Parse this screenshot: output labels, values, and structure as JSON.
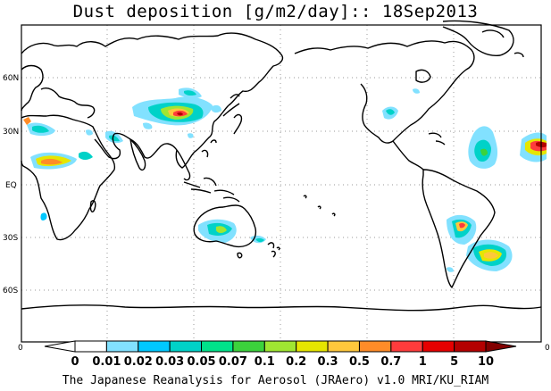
{
  "title": "Dust deposition [g/m2/day]:: 18Sep2013",
  "lat_labels": [
    "60N",
    "30N",
    "EQ",
    "30S",
    "60S"
  ],
  "lon_labels": [
    "0",
    "0"
  ],
  "colorbar": {
    "levels": [
      "0",
      "0.01",
      "0.02",
      "0.03",
      "0.05",
      "0.07",
      "0.1",
      "0.2",
      "0.3",
      "0.5",
      "0.7",
      "1",
      "5",
      "10"
    ],
    "colors": [
      "#ffffff",
      "#ffffff",
      "#82e1ff",
      "#00c8ff",
      "#00d2c8",
      "#00e28a",
      "#3cd23c",
      "#a0e632",
      "#e6e600",
      "#ffc83c",
      "#ff8c28",
      "#ff3c3c",
      "#e60000",
      "#b40000",
      "#820000"
    ]
  },
  "credit": "The Japanese Reanalysis for Aerosol (JRAero) v1.0 MRI/KU_RIAM"
}
